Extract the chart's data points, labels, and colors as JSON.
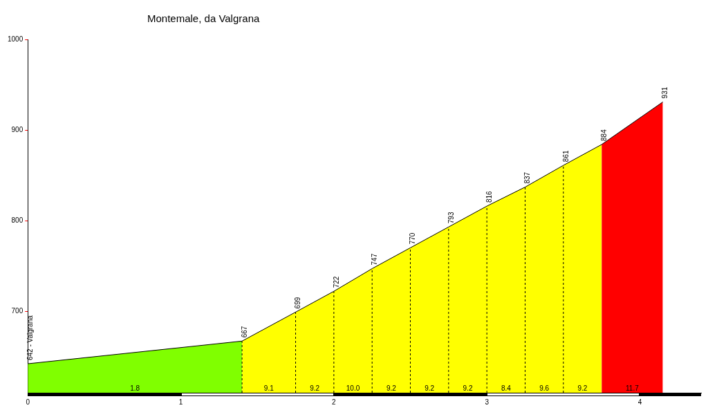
{
  "chart_data": {
    "type": "area",
    "title": "Montemale, da Valgrana",
    "xlim": [
      0,
      4.4
    ],
    "xticks": [
      0,
      1,
      2,
      3,
      4
    ],
    "ylim": [
      610,
      1000
    ],
    "yticks": [
      700,
      800,
      900,
      1000
    ],
    "grid": false,
    "legend": false,
    "marker": "none",
    "series": [
      {
        "color": "#80ff00",
        "x": [
          0,
          1.4
        ],
        "values": [
          642,
          667
        ],
        "value_labels": [
          "642 - Valgrana",
          null
        ]
      },
      {
        "color": "#ffff00",
        "x": [
          1.4,
          1.75,
          2.0,
          2.25,
          2.5,
          2.75,
          3.0,
          3.25,
          3.5,
          3.75
        ],
        "values": [
          667,
          699,
          722,
          747,
          770,
          793,
          816,
          837,
          861,
          884
        ],
        "value_labels": [
          "667",
          "699",
          "722",
          "747",
          "770",
          "793",
          "816",
          "837",
          "861",
          "884"
        ]
      },
      {
        "color": "#ff0000",
        "x": [
          3.75,
          4.15
        ],
        "values": [
          884,
          931
        ],
        "value_labels": [
          null,
          "931"
        ]
      }
    ],
    "ref_lines": [
      {
        "axis": "x",
        "value": 1.4,
        "line_style": "dashed",
        "color": "#000000"
      },
      {
        "axis": "x",
        "value": 1.75,
        "line_style": "dashed",
        "color": "#000000"
      },
      {
        "axis": "x",
        "value": 2.0,
        "line_style": "dashed",
        "color": "#000000"
      },
      {
        "axis": "x",
        "value": 2.25,
        "line_style": "dashed",
        "color": "#000000"
      },
      {
        "axis": "x",
        "value": 2.5,
        "line_style": "dashed",
        "color": "#000000"
      },
      {
        "axis": "x",
        "value": 2.75,
        "line_style": "dashed",
        "color": "#000000"
      },
      {
        "axis": "x",
        "value": 3.0,
        "line_style": "dashed",
        "color": "#000000"
      },
      {
        "axis": "x",
        "value": 3.25,
        "line_style": "dashed",
        "color": "#000000"
      },
      {
        "axis": "x",
        "value": 3.5,
        "line_style": "dashed",
        "color": "#000000"
      }
    ],
    "annotations": [
      {
        "text": "1.8",
        "x": 0.7,
        "y": 610
      },
      {
        "text": "9.1",
        "x": 1.575,
        "y": 610
      },
      {
        "text": "9.2",
        "x": 1.875,
        "y": 610
      },
      {
        "text": "10.0",
        "x": 2.125,
        "y": 610
      },
      {
        "text": "9.2",
        "x": 2.375,
        "y": 610
      },
      {
        "text": "9.2",
        "x": 2.625,
        "y": 610
      },
      {
        "text": "9.2",
        "x": 2.875,
        "y": 610
      },
      {
        "text": "8.4",
        "x": 3.125,
        "y": 610
      },
      {
        "text": "9.6",
        "x": 3.375,
        "y": 610
      },
      {
        "text": "9.2",
        "x": 3.625,
        "y": 610
      },
      {
        "text": "11.7",
        "x": 3.95,
        "y": 610
      }
    ]
  }
}
